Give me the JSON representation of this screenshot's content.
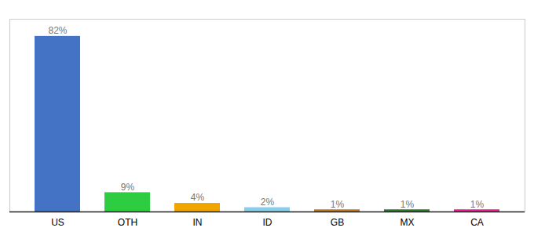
{
  "chart_data": {
    "type": "bar",
    "categories": [
      "US",
      "OTH",
      "IN",
      "ID",
      "GB",
      "MX",
      "CA"
    ],
    "values": [
      82,
      9,
      4,
      2,
      1,
      1,
      1
    ],
    "value_labels": [
      "82%",
      "9%",
      "4%",
      "2%",
      "1%",
      "1%",
      "1%"
    ],
    "colors": [
      "#4472c4",
      "#2ecc40",
      "#f0a500",
      "#87ceeb",
      "#c07820",
      "#2d7a2d",
      "#e91e8c"
    ],
    "ylim": [
      0,
      90
    ],
    "grid": false,
    "data_labels": true,
    "tick_labels": "x"
  }
}
